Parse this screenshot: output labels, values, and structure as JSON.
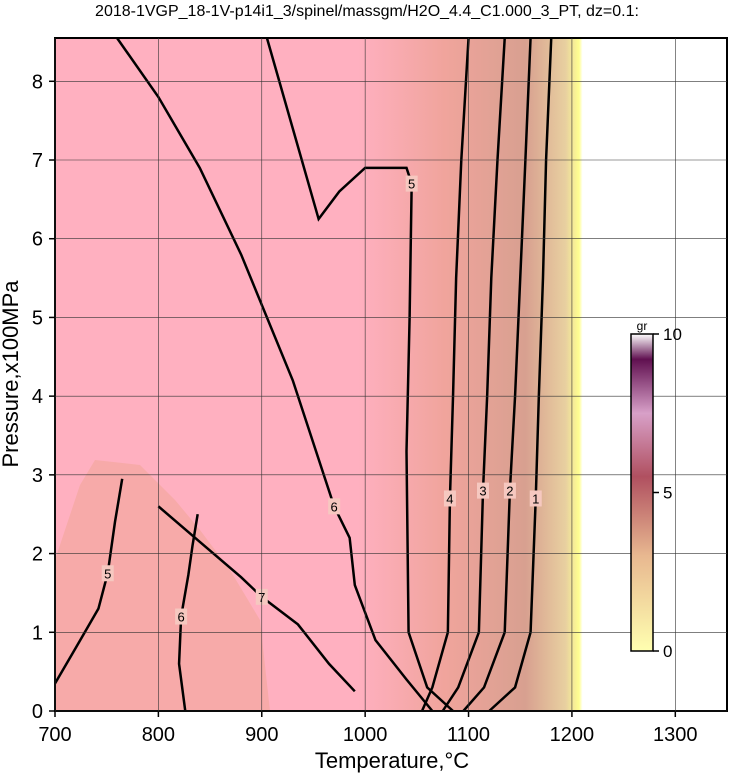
{
  "chart_data": {
    "type": "contour",
    "title": "2018-1VGP_18-1V-p14i1_3/spinel/massgm/H2O_4.4_C1.000_3_PT, dz=0.1:",
    "xlabel": "Temperature,°C",
    "ylabel": "Pressure,x100MPa",
    "xlim": [
      700,
      1350
    ],
    "ylim": [
      0,
      8.55
    ],
    "xticks": [
      700,
      800,
      900,
      1000,
      1100,
      1200,
      1300
    ],
    "yticks": [
      0,
      1,
      2,
      3,
      4,
      5,
      6,
      7,
      8
    ],
    "grid": true,
    "contours": [
      {
        "level": 1,
        "x": [
          1180,
          1175,
          1172,
          1168,
          1165,
          1160,
          1145,
          1120
        ],
        "y": [
          8.55,
          7,
          5.5,
          4,
          2.7,
          1,
          0.3,
          0
        ]
      },
      {
        "level": 2,
        "x": [
          1160,
          1155,
          1150,
          1145,
          1140,
          1135,
          1115,
          1095
        ],
        "y": [
          8.55,
          7,
          5.5,
          4,
          2.8,
          1,
          0.3,
          0
        ]
      },
      {
        "level": 3,
        "x": [
          1135,
          1128,
          1122,
          1118,
          1114,
          1110,
          1090,
          1075
        ],
        "y": [
          8.55,
          7,
          5.5,
          4,
          2.8,
          1,
          0.3,
          0
        ]
      },
      {
        "level": 4,
        "x": [
          1100,
          1093,
          1088,
          1085,
          1082,
          1080,
          1065,
          1055
        ],
        "y": [
          8.55,
          7,
          5.5,
          4,
          2.7,
          1,
          0.3,
          0
        ]
      },
      {
        "level": 5,
        "x": [
          905,
          930,
          955,
          975,
          1000,
          1040,
          1045,
          1043,
          1040,
          1042,
          1060,
          1085
        ],
        "y": [
          8.55,
          7.4,
          6.25,
          6.6,
          6.9,
          6.9,
          6.7,
          5,
          3.3,
          1,
          0.3,
          0
        ]
      },
      {
        "level": 6,
        "x": [
          760,
          800,
          840,
          880,
          930,
          970,
          985,
          990,
          1010,
          1040,
          1065
        ],
        "y": [
          8.55,
          7.8,
          6.9,
          5.8,
          4.2,
          2.6,
          2.2,
          1.6,
          0.9,
          0.4,
          0
        ]
      },
      {
        "level": 5,
        "x": [
          700,
          720,
          742,
          751,
          758,
          765
        ],
        "y": [
          0.35,
          0.8,
          1.3,
          1.75,
          2.4,
          2.95
        ]
      },
      {
        "level": 6,
        "x": [
          838,
          833,
          829,
          822,
          820,
          826
        ],
        "y": [
          2.5,
          2.1,
          1.73,
          1.2,
          0.6,
          0
        ]
      },
      {
        "level": 7,
        "x": [
          800,
          840,
          880,
          900,
          935,
          965,
          990
        ],
        "y": [
          2.6,
          2.15,
          1.7,
          1.45,
          1.1,
          0.6,
          0.25
        ]
      }
    ],
    "colorbar": {
      "label": "gr",
      "lim": [
        0,
        10
      ],
      "ticks": [
        0,
        5,
        10
      ],
      "colors": [
        "#ffffb0",
        "#e8a888",
        "#b04060",
        "#3a0a3a",
        "#ffffff"
      ]
    }
  }
}
